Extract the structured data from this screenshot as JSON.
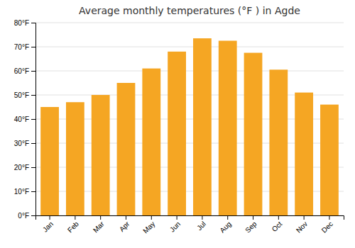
{
  "chart_data": {
    "type": "bar",
    "title": "Average monthly temperatures (°F ) in Agde",
    "categories": [
      "Jan",
      "Feb",
      "Mar",
      "Apr",
      "May",
      "Jun",
      "Jul",
      "Aug",
      "Sep",
      "Oct",
      "Nov",
      "Dec"
    ],
    "values": [
      45,
      47,
      50,
      55,
      61,
      68,
      73.5,
      72.5,
      67.5,
      60.5,
      51,
      46
    ],
    "color": "#F5A623",
    "ylim": [
      0,
      80
    ],
    "yticks": [
      {
        "value": 0,
        "label": "0°F"
      },
      {
        "value": 10,
        "label": "10°F"
      },
      {
        "value": 20,
        "label": "20°F"
      },
      {
        "value": 30,
        "label": "30°F"
      },
      {
        "value": 40,
        "label": "40°F"
      },
      {
        "value": 50,
        "label": "50°F"
      },
      {
        "value": 60,
        "label": "60°F"
      },
      {
        "value": 70,
        "label": "70°F"
      },
      {
        "value": 80,
        "label": "80°F"
      }
    ],
    "grid": true
  }
}
